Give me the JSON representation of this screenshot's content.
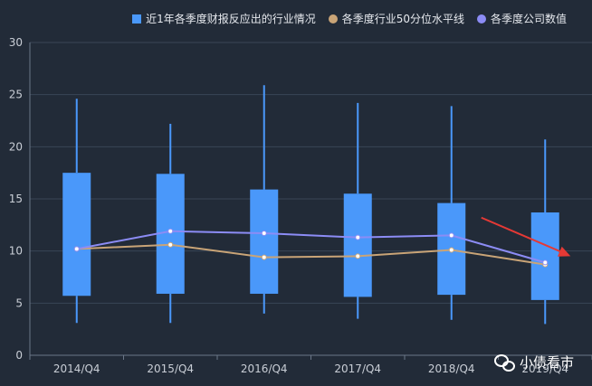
{
  "legend": {
    "box_label": "近1年各季度财报反应出的行业情况",
    "median_label": "各季度行业50分位水平线",
    "company_label": "各季度公司数值"
  },
  "watermark": "小债看市",
  "colors": {
    "box": "#4a98fa",
    "median": "#c9a477",
    "company": "#8c8cf5",
    "arrow": "#e53935",
    "grid": "#3a4656",
    "axis": "#6b7788"
  },
  "chart_data": {
    "type": "boxplot",
    "categories": [
      "2014/Q4",
      "2015/Q4",
      "2016/Q4",
      "2017/Q4",
      "2018/Q4",
      "2019/Q4"
    ],
    "ylim": [
      0,
      30
    ],
    "yticks": [
      0,
      5,
      10,
      15,
      20,
      25,
      30
    ],
    "boxes": [
      {
        "min": 3.1,
        "q1": 5.7,
        "q3": 17.5,
        "max": 24.6
      },
      {
        "min": 3.1,
        "q1": 5.9,
        "q3": 17.4,
        "max": 22.2
      },
      {
        "min": 4.0,
        "q1": 5.9,
        "q3": 15.9,
        "max": 25.9
      },
      {
        "min": 3.5,
        "q1": 5.6,
        "q3": 15.5,
        "max": 24.2
      },
      {
        "min": 3.4,
        "q1": 5.8,
        "q3": 14.6,
        "max": 23.9
      },
      {
        "min": 3.0,
        "q1": 5.3,
        "q3": 13.7,
        "max": 20.7
      }
    ],
    "series": [
      {
        "name": "各季度行业50分位水平线",
        "values": [
          10.2,
          10.6,
          9.4,
          9.5,
          10.1,
          8.7
        ]
      },
      {
        "name": "各季度公司数值",
        "values": [
          10.2,
          11.9,
          11.7,
          11.3,
          11.5,
          8.9
        ]
      }
    ],
    "grid": true,
    "legend_position": "top-right",
    "annotation": {
      "type": "arrow",
      "from": {
        "x": "2018/Q4",
        "y": 13.2
      },
      "to": {
        "x": "2019/Q4",
        "y": 9.5
      }
    }
  }
}
